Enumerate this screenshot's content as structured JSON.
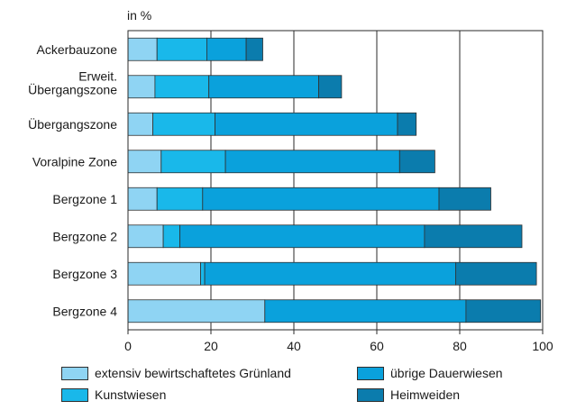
{
  "chart_data": {
    "type": "bar",
    "orientation": "horizontal",
    "stacked": true,
    "ylabel": "in %",
    "xlim": [
      0,
      100
    ],
    "xticks": [
      0,
      20,
      40,
      60,
      80,
      100
    ],
    "grid": true,
    "legend_position": "bottom",
    "categories": [
      "Ackerbauzone",
      [
        "Erweit.",
        "Übergangszone"
      ],
      "Übergangszone",
      "Voralpine Zone",
      "Bergzone 1",
      "Bergzone 2",
      "Bergzone 3",
      "Bergzone 4"
    ],
    "series": [
      {
        "name": "extensiv bewirtschaftetes Grünland",
        "color": "#8fd4f3",
        "values": [
          7,
          6.5,
          6,
          8,
          7,
          8.5,
          17.5,
          33
        ]
      },
      {
        "name": "Kunstwiesen",
        "color": "#19b8ea",
        "values": [
          12,
          13,
          15,
          15.5,
          11,
          4,
          1,
          0
        ]
      },
      {
        "name": "übrige Dauerwiesen",
        "color": "#0aa1dc",
        "values": [
          9.5,
          26.5,
          44,
          42,
          57,
          59,
          60.5,
          48.5
        ]
      },
      {
        "name": "Heimweiden",
        "color": "#0b7cad",
        "values": [
          4,
          5.5,
          4.5,
          8.5,
          12.5,
          23.5,
          19.5,
          18
        ]
      }
    ]
  }
}
